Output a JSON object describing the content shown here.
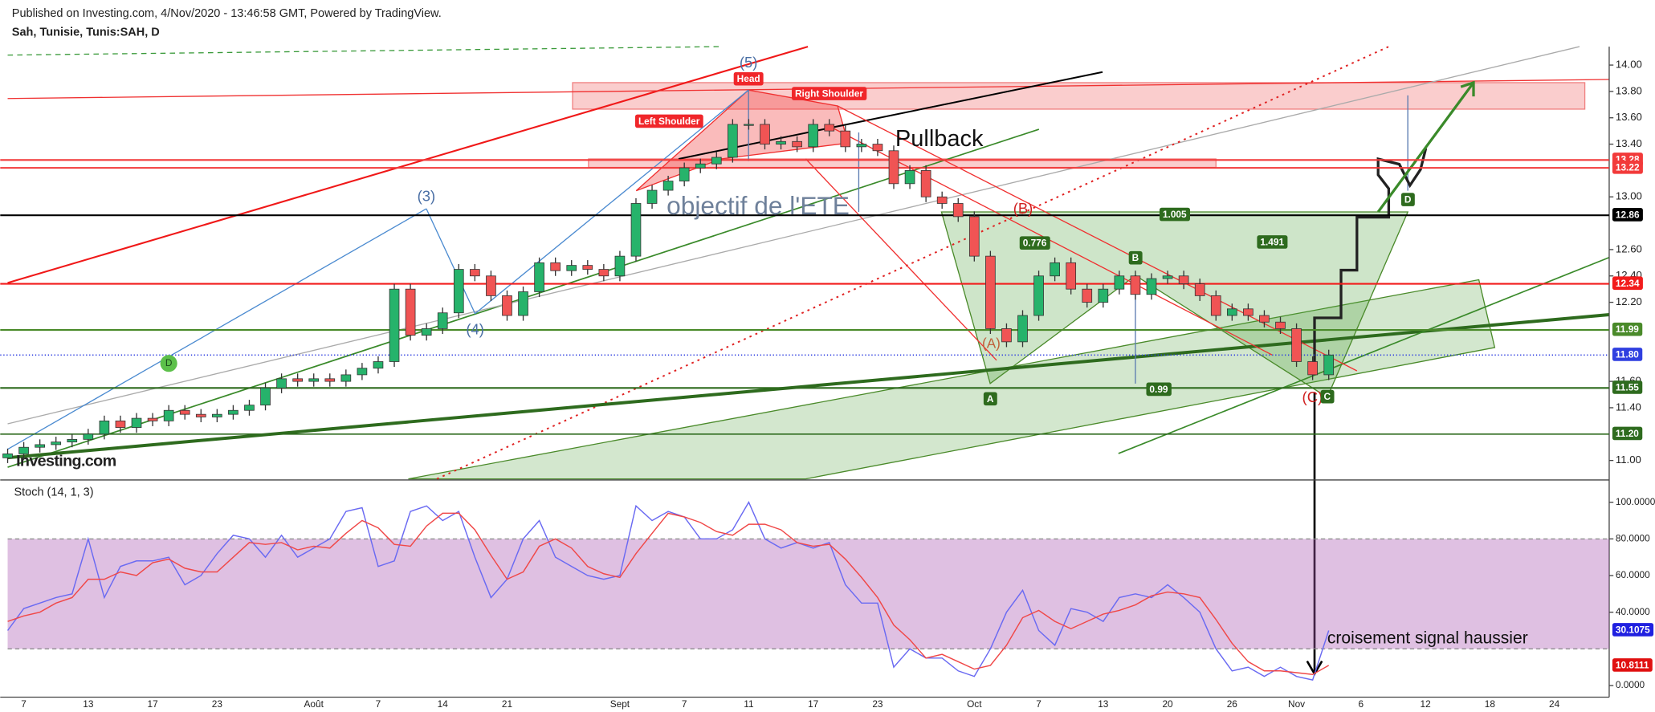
{
  "header": {
    "published": "Published on Investing.com, 4/Nov/2020 - 13:46:58 GMT, Powered by TradingView.",
    "symbol": "Sah, Tunisie, Tunis:SAH, D"
  },
  "logo": "Investing.com",
  "chart_data": [
    {
      "type": "candlestick",
      "up_color": "#26b36b",
      "down_color": "#f05454",
      "categories": [
        null,
        "7",
        null,
        null,
        null,
        "13",
        null,
        null,
        null,
        "17",
        null,
        null,
        null,
        "23",
        null,
        null,
        null,
        null,
        null,
        "Août",
        null,
        null,
        null,
        "7",
        null,
        null,
        null,
        "14",
        null,
        null,
        null,
        "21",
        null,
        null,
        null,
        null,
        null,
        null,
        "Sept",
        null,
        null,
        null,
        "7",
        null,
        null,
        null,
        "11",
        null,
        null,
        null,
        "17",
        null,
        null,
        null,
        "23",
        null,
        null,
        null,
        null,
        null,
        "Oct",
        null,
        null,
        null,
        "7",
        null,
        null,
        null,
        "13",
        null,
        null,
        null,
        "20",
        null,
        null,
        null,
        "26",
        null,
        null,
        null,
        "Nov",
        null,
        null,
        null,
        "6",
        null,
        null,
        null,
        "12",
        null,
        null,
        null,
        "18",
        null,
        null,
        null,
        "24"
      ],
      "open": [
        11.02,
        11.05,
        11.1,
        11.12,
        11.14,
        11.16,
        11.2,
        11.3,
        11.25,
        11.32,
        11.3,
        11.38,
        11.35,
        11.33,
        11.35,
        11.38,
        11.42,
        11.55,
        11.62,
        11.6,
        11.62,
        11.6,
        11.65,
        11.7,
        11.75,
        12.3,
        11.95,
        12.0,
        12.12,
        12.45,
        12.4,
        12.25,
        12.1,
        12.28,
        12.5,
        12.44,
        12.48,
        12.45,
        12.4,
        12.55,
        12.95,
        13.05,
        13.12,
        13.22,
        13.25,
        13.3,
        13.55,
        13.55,
        13.4,
        13.42,
        13.38,
        13.55,
        13.5,
        13.38,
        13.4,
        13.35,
        13.1,
        13.2,
        13.0,
        12.95,
        12.85,
        12.55,
        12.0,
        11.9,
        12.1,
        12.4,
        12.5,
        12.3,
        12.2,
        12.3,
        12.4,
        12.26,
        12.38,
        12.4,
        12.34,
        12.25,
        12.1,
        12.15,
        12.1,
        12.05,
        12.0,
        11.75,
        11.65,
        null,
        null,
        null,
        null,
        null,
        null,
        null,
        null,
        null,
        null,
        null,
        null,
        null,
        null
      ],
      "high": [
        11.09,
        11.14,
        11.16,
        11.18,
        11.2,
        11.24,
        11.34,
        11.34,
        11.36,
        11.36,
        11.42,
        11.42,
        11.39,
        11.39,
        11.42,
        11.46,
        11.59,
        11.66,
        11.66,
        11.66,
        11.66,
        11.69,
        11.74,
        11.79,
        12.34,
        12.34,
        12.04,
        12.16,
        12.49,
        12.49,
        12.44,
        12.29,
        12.32,
        12.54,
        12.54,
        12.52,
        12.52,
        12.49,
        12.59,
        12.99,
        13.09,
        13.16,
        13.26,
        13.29,
        13.34,
        13.59,
        13.59,
        13.59,
        13.46,
        13.46,
        13.59,
        13.59,
        13.54,
        13.44,
        13.44,
        13.39,
        13.24,
        13.24,
        13.04,
        12.99,
        12.89,
        12.59,
        12.04,
        12.14,
        12.44,
        12.54,
        12.54,
        12.34,
        12.34,
        12.44,
        12.44,
        12.42,
        12.44,
        12.44,
        12.38,
        12.29,
        12.19,
        12.19,
        12.14,
        12.09,
        12.04,
        11.79,
        11.84,
        null,
        null,
        null,
        null,
        null,
        null,
        null,
        null,
        null,
        null,
        null,
        null,
        null,
        null
      ],
      "low": [
        10.98,
        11.01,
        11.06,
        11.08,
        11.1,
        11.12,
        11.16,
        11.21,
        11.21,
        11.26,
        11.26,
        11.31,
        11.29,
        11.29,
        11.31,
        11.34,
        11.38,
        11.51,
        11.56,
        11.56,
        11.56,
        11.56,
        11.61,
        11.66,
        11.71,
        11.91,
        11.91,
        11.96,
        12.08,
        12.36,
        12.21,
        12.06,
        12.06,
        12.24,
        12.4,
        12.4,
        12.41,
        12.36,
        12.36,
        12.51,
        12.91,
        13.01,
        13.08,
        13.18,
        13.21,
        13.26,
        13.51,
        13.36,
        13.36,
        13.34,
        13.34,
        13.46,
        13.34,
        13.34,
        13.31,
        13.06,
        13.06,
        12.96,
        12.91,
        12.81,
        12.51,
        11.96,
        11.86,
        11.86,
        12.06,
        12.36,
        12.26,
        12.16,
        12.16,
        12.26,
        12.22,
        12.22,
        12.34,
        12.3,
        12.21,
        12.06,
        12.06,
        12.06,
        12.01,
        11.96,
        11.71,
        11.61,
        11.61,
        null,
        null,
        null,
        null,
        null,
        null,
        null,
        null,
        null,
        null,
        null,
        null,
        null,
        null
      ],
      "close": [
        11.05,
        11.1,
        11.12,
        11.14,
        11.16,
        11.2,
        11.3,
        11.25,
        11.32,
        11.3,
        11.38,
        11.35,
        11.33,
        11.35,
        11.38,
        11.42,
        11.55,
        11.62,
        11.6,
        11.62,
        11.6,
        11.65,
        11.7,
        11.75,
        12.3,
        11.95,
        12.0,
        12.12,
        12.45,
        12.4,
        12.25,
        12.1,
        12.28,
        12.5,
        12.44,
        12.48,
        12.45,
        12.4,
        12.55,
        12.95,
        13.05,
        13.12,
        13.22,
        13.25,
        13.3,
        13.55,
        13.55,
        13.4,
        13.42,
        13.38,
        13.55,
        13.5,
        13.38,
        13.4,
        13.35,
        13.1,
        13.2,
        13.0,
        12.95,
        12.85,
        12.55,
        12.0,
        11.9,
        12.1,
        12.4,
        12.5,
        12.3,
        12.2,
        12.3,
        12.4,
        12.26,
        12.38,
        12.4,
        12.34,
        12.25,
        12.1,
        12.15,
        12.1,
        12.05,
        12.0,
        11.75,
        11.65,
        11.8,
        null,
        null,
        null,
        null,
        null,
        null,
        null,
        null,
        null,
        null,
        null,
        null,
        null,
        null
      ],
      "ylim": [
        10.86,
        14.14
      ],
      "yticks": [
        {
          "value": 11,
          "label": "11.00"
        },
        {
          "value": 11.4,
          "label": "11.40"
        },
        {
          "value": 11.6,
          "label": "11.60"
        },
        {
          "value": 12.2,
          "label": "12.20"
        },
        {
          "value": 12.4,
          "label": "12.40"
        },
        {
          "value": 12.6,
          "label": "12.60"
        },
        {
          "value": 13,
          "label": "13.00"
        },
        {
          "value": 13.4,
          "label": "13.40"
        },
        {
          "value": 13.6,
          "label": "13.60"
        },
        {
          "value": 13.8,
          "label": "13.80"
        },
        {
          "value": 14,
          "label": "14.00"
        }
      ],
      "price_levels": [
        {
          "value": 13.28,
          "color": "#f23a3a"
        },
        {
          "value": 13.22,
          "color": "#f23a3a"
        },
        {
          "value": 12.86,
          "color": "#000000"
        },
        {
          "value": 12.34,
          "color": "#f21c1c"
        },
        {
          "value": 11.99,
          "color": "#4a8a2a"
        },
        {
          "value": 11.8,
          "label": "11.80",
          "color": "#2f3fe0"
        },
        {
          "value": 11.55,
          "color": "#2e6b1e"
        },
        {
          "value": 11.2,
          "label": "11.20",
          "color": "#2e6b1e"
        }
      ],
      "annotations": [
        "(5)",
        "Head",
        "Left Shoulder",
        "Right Shoulder",
        "Pullback",
        "objectif de l'ETE",
        "(3)",
        "(4)",
        "(B)",
        "(A)",
        "(C)",
        "A",
        "B",
        "C",
        "D",
        "D",
        "1.005",
        "1.491",
        "0.776",
        "0.99",
        "croisement signal haussier"
      ]
    },
    {
      "type": "line",
      "title": "Stoch (14, 1, 3)",
      "ylim": [
        -7.5,
        111
      ],
      "band": [
        20,
        80
      ],
      "yticks": [
        {
          "value": 0,
          "label": "0.0000"
        },
        {
          "value": 40,
          "label": "40.0000"
        },
        {
          "value": 60,
          "label": "60.0000"
        },
        {
          "value": 80,
          "label": "80.0000"
        },
        {
          "value": 100,
          "label": "100.0000"
        }
      ],
      "series": [
        {
          "color": "#6a6af2",
          "last_value": 30.1075,
          "values": [
            30,
            42,
            45,
            48,
            50,
            80,
            48,
            65,
            68,
            68,
            70,
            55,
            60,
            72,
            82,
            80,
            70,
            82,
            70,
            75,
            80,
            95,
            97,
            65,
            68,
            95,
            98,
            90,
            95,
            70,
            48,
            58,
            80,
            90,
            70,
            65,
            60,
            58,
            60,
            98,
            90,
            95,
            92,
            80,
            80,
            85,
            100,
            80,
            75,
            78,
            75,
            78,
            55,
            45,
            45,
            10,
            20,
            15,
            15,
            8,
            5,
            20,
            40,
            52,
            30,
            22,
            42,
            40,
            35,
            48,
            50,
            48,
            55,
            48,
            40,
            20,
            8,
            10,
            5,
            10,
            5,
            3,
            30
          ]
        },
        {
          "color": "#f04848",
          "last_value": 10.8111,
          "values": [
            35,
            38,
            40,
            45,
            48,
            58,
            58,
            62,
            60,
            67,
            69,
            64,
            62,
            62,
            70,
            78,
            77,
            78,
            74,
            76,
            75,
            83,
            90,
            86,
            77,
            76,
            87,
            94,
            94,
            85,
            71,
            58,
            62,
            76,
            80,
            75,
            65,
            61,
            59,
            72,
            83,
            94,
            92,
            89,
            84,
            82,
            88,
            88,
            85,
            78,
            76,
            77,
            69,
            59,
            48,
            33,
            25,
            15,
            17,
            13,
            9,
            11,
            22,
            37,
            41,
            35,
            31,
            35,
            39,
            41,
            44,
            49,
            51,
            50,
            48,
            36,
            23,
            13,
            8,
            8,
            7,
            6,
            11
          ]
        }
      ]
    }
  ]
}
